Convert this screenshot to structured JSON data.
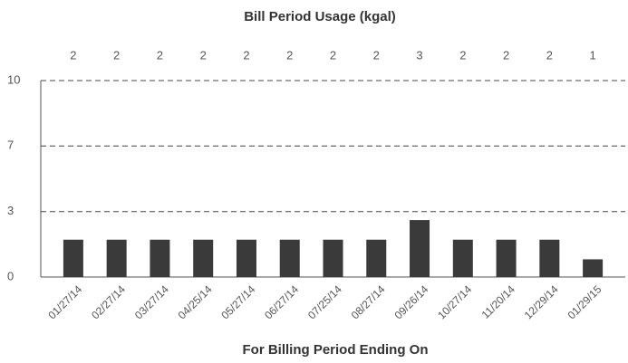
{
  "chart_data": {
    "type": "bar",
    "title": "Bill Period Usage (kgal)",
    "x_label": "For Billing Period Ending On",
    "categories": [
      "01/27/14",
      "02/27/14",
      "03/27/14",
      "04/25/14",
      "05/27/14",
      "06/27/14",
      "07/25/14",
      "08/27/14",
      "09/26/14",
      "10/27/14",
      "11/20/14",
      "12/29/14",
      "01/29/15"
    ],
    "values": [
      1.9,
      1.9,
      1.9,
      1.9,
      1.9,
      1.9,
      1.9,
      1.9,
      2.9,
      1.9,
      1.9,
      1.9,
      0.9
    ],
    "value_labels": [
      "2",
      "2",
      "2",
      "2",
      "2",
      "2",
      "2",
      "2",
      "3",
      "2",
      "2",
      "2",
      "1"
    ],
    "color": "#3a3a3a",
    "ylim": [
      0,
      10
    ],
    "yticks": [
      0,
      {
        "value": 3.33,
        "label": "3"
      },
      {
        "value": 6.67,
        "label": "7"
      },
      10
    ],
    "grid": true
  }
}
